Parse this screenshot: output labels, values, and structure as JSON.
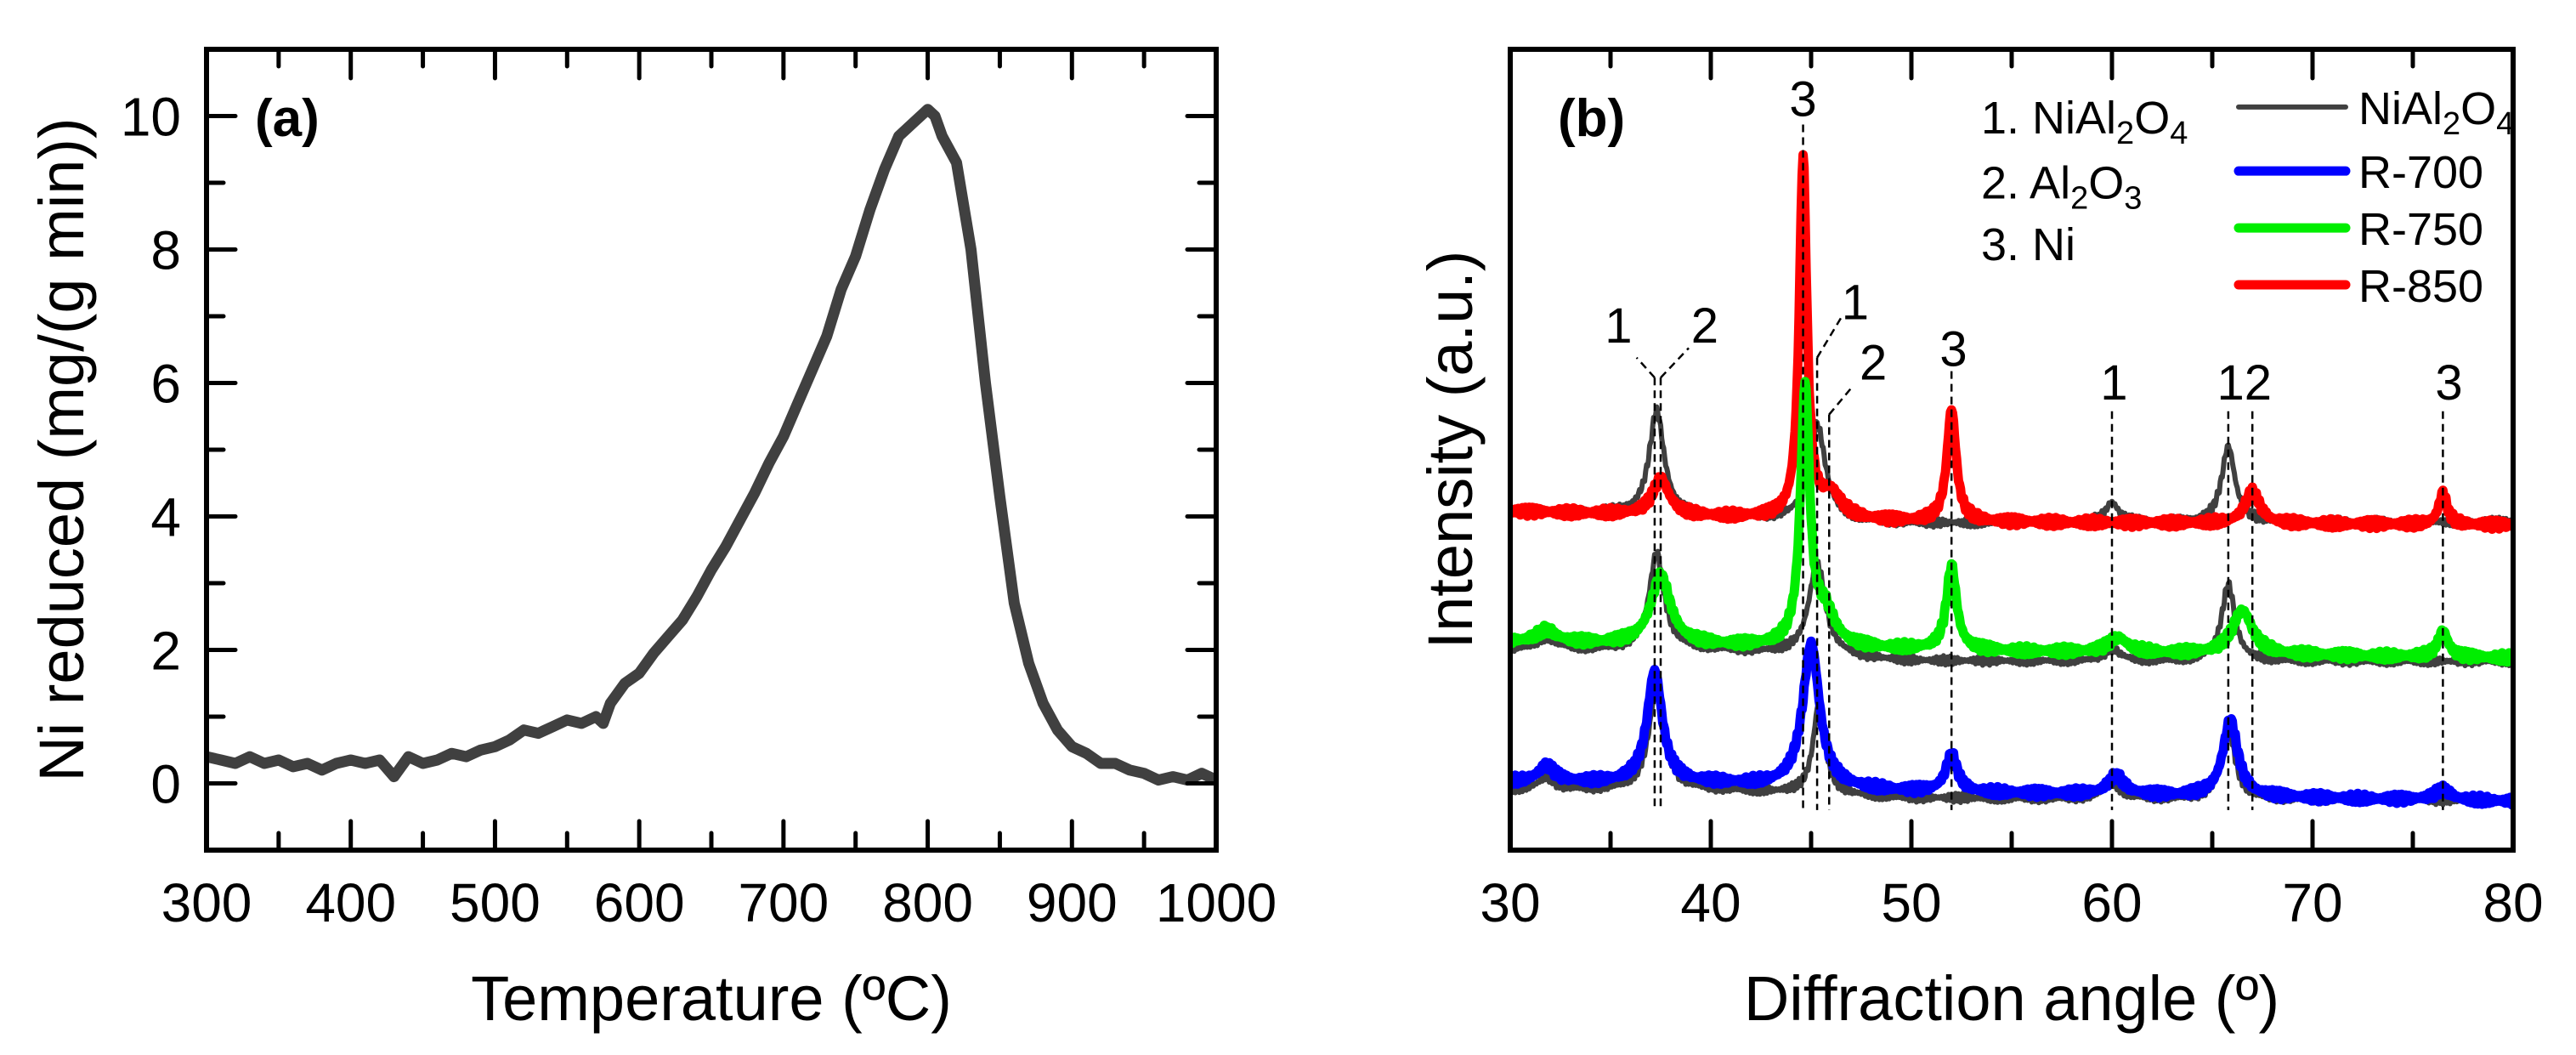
{
  "chart_data": [
    {
      "type": "line",
      "panel_label": "(a)",
      "xlabel": "Temperature (ºC)",
      "ylabel": "Ni reduced (mg/(g min))",
      "xlim": [
        300,
        1000
      ],
      "ylim": [
        -1,
        11
      ],
      "xticks": [
        300,
        400,
        500,
        600,
        700,
        800,
        900,
        1000
      ],
      "yticks": [
        0,
        2,
        4,
        6,
        8,
        10
      ],
      "color": "#404040",
      "x": [
        300,
        310,
        320,
        330,
        340,
        350,
        360,
        370,
        380,
        390,
        400,
        410,
        420,
        430,
        440,
        450,
        460,
        470,
        480,
        490,
        500,
        510,
        520,
        530,
        540,
        550,
        560,
        570,
        575,
        580,
        590,
        600,
        610,
        620,
        630,
        640,
        650,
        660,
        670,
        680,
        690,
        700,
        710,
        720,
        730,
        740,
        750,
        760,
        770,
        780,
        790,
        800,
        805,
        810,
        820,
        830,
        840,
        850,
        860,
        870,
        880,
        890,
        900,
        910,
        920,
        930,
        940,
        950,
        960,
        970,
        980,
        990,
        1000
      ],
      "y": [
        0.4,
        0.35,
        0.3,
        0.4,
        0.3,
        0.35,
        0.25,
        0.3,
        0.2,
        0.3,
        0.35,
        0.3,
        0.35,
        0.1,
        0.4,
        0.3,
        0.35,
        0.45,
        0.4,
        0.5,
        0.55,
        0.65,
        0.8,
        0.75,
        0.85,
        0.95,
        0.9,
        1.0,
        0.9,
        1.2,
        1.5,
        1.65,
        1.95,
        2.2,
        2.45,
        2.8,
        3.2,
        3.55,
        3.95,
        4.35,
        4.8,
        5.2,
        5.7,
        6.2,
        6.7,
        7.4,
        7.9,
        8.6,
        9.2,
        9.7,
        9.9,
        10.1,
        10.0,
        9.7,
        9.3,
        8.0,
        6.0,
        4.3,
        2.7,
        1.8,
        1.2,
        0.8,
        0.55,
        0.45,
        0.3,
        0.3,
        0.2,
        0.15,
        0.05,
        0.1,
        0.05,
        0.15,
        0.05
      ]
    },
    {
      "type": "line",
      "panel_label": "(b)",
      "xlabel": "Diffraction angle (º)",
      "ylabel": "Intensity (a.u.)",
      "xlim": [
        30,
        80
      ],
      "ylim": [
        0,
        100
      ],
      "xticks": [
        30,
        40,
        50,
        60,
        70,
        80
      ],
      "y_tick_labels_shown": false,
      "series_model": "baseline points [x, intensity] plus Lorentzian peaks [position, height, FWHM], intensity in a.u.",
      "series": [
        {
          "name": "NiAl2O4 (vs R-850)",
          "color": "#404040",
          "role": "reference",
          "baseline": [
            [
              30,
              42.5
            ],
            [
              40,
              41.5
            ],
            [
              50,
              40.8
            ],
            [
              80,
              41
            ]
          ],
          "peaks": [
            [
              37.3,
              13,
              0.9
            ],
            [
              45.3,
              12,
              1.0
            ],
            [
              60,
              2.5,
              0.8
            ],
            [
              65.8,
              9.5,
              0.8
            ]
          ]
        },
        {
          "name": "NiAl2O4 (vs R-750)",
          "color": "#404040",
          "role": "reference",
          "baseline": [
            [
              30,
              25
            ],
            [
              40,
              25
            ],
            [
              50,
              23.6
            ],
            [
              80,
              23.6
            ]
          ],
          "peaks": [
            [
              31.8,
              1.5,
              1.2
            ],
            [
              37.3,
              12,
              0.9
            ],
            [
              45.3,
              11.5,
              1.0
            ],
            [
              60,
              1.5,
              1
            ],
            [
              65.8,
              9.5,
              0.8
            ]
          ]
        },
        {
          "name": "NiAl2O4 (vs R-700)",
          "color": "#404040",
          "role": "reference",
          "baseline": [
            [
              30,
              7.5
            ],
            [
              40,
              7.5
            ],
            [
              50,
              6.5
            ],
            [
              80,
              6.2
            ]
          ],
          "peaks": [
            [
              31.8,
              1.5,
              1
            ],
            [
              37.3,
              13,
              0.9
            ],
            [
              45.4,
              11.5,
              0.7
            ],
            [
              60,
              2,
              1
            ],
            [
              65.8,
              9,
              0.8
            ]
          ]
        },
        {
          "name": "R-850",
          "color": "#ff0000",
          "role": "sample",
          "baseline": [
            [
              30,
              42.3
            ],
            [
              42,
              41.5
            ],
            [
              50,
              41
            ],
            [
              80,
              40.6
            ]
          ],
          "peaks": [
            [
              37.5,
              4.5,
              1.0
            ],
            [
              44.6,
              45,
              0.45
            ],
            [
              46,
              3,
              1.2
            ],
            [
              52.0,
              14,
              0.55
            ],
            [
              67.0,
              4,
              0.9
            ],
            [
              76.5,
              4,
              0.5
            ]
          ]
        },
        {
          "name": "R-750",
          "color": "#00ee00",
          "role": "sample",
          "baseline": [
            [
              30,
              26
            ],
            [
              40,
              25.5
            ],
            [
              55,
              24.8
            ],
            [
              80,
              24
            ]
          ],
          "peaks": [
            [
              31.8,
              1.5,
              1.2
            ],
            [
              37.5,
              8.5,
              1.2
            ],
            [
              44.7,
              32,
              0.55
            ],
            [
              45.7,
              4,
              1.2
            ],
            [
              52,
              10.5,
              0.6
            ],
            [
              60.3,
              1.8,
              1.2
            ],
            [
              66.5,
              5.5,
              1.2
            ],
            [
              76.5,
              3.3,
              0.6
            ]
          ]
        },
        {
          "name": "R-700",
          "color": "#0000ff",
          "role": "sample",
          "baseline": [
            [
              30,
              8.5
            ],
            [
              40,
              8.3
            ],
            [
              50,
              7.3
            ],
            [
              70,
              6.5
            ],
            [
              80,
              6.1
            ]
          ],
          "peaks": [
            [
              31.8,
              2,
              1
            ],
            [
              37.2,
              14,
              0.9
            ],
            [
              45.0,
              18,
              1.0
            ],
            [
              52,
              4.6,
              0.7
            ],
            [
              60.2,
              2.3,
              1
            ],
            [
              65.9,
              9.5,
              0.9
            ],
            [
              76.5,
              1.3,
              1
            ]
          ]
        }
      ],
      "legend": [
        {
          "color": "#404040",
          "parts": [
            {
              "t": "NiAl"
            },
            {
              "t": "2",
              "sub": true
            },
            {
              "t": "O"
            },
            {
              "t": "4",
              "sub": true
            }
          ]
        },
        {
          "color": "#0000ff",
          "parts": [
            {
              "t": "R-700"
            }
          ]
        },
        {
          "color": "#00ee00",
          "parts": [
            {
              "t": "R-750"
            }
          ]
        },
        {
          "color": "#ff0000",
          "parts": [
            {
              "t": "R-850"
            }
          ]
        }
      ],
      "legend_placement": "top-right",
      "phase_key": [
        {
          "parts": [
            {
              "t": "1. NiAl"
            },
            {
              "t": "2",
              "sub": true
            },
            {
              "t": "O"
            },
            {
              "t": "4",
              "sub": true
            }
          ]
        },
        {
          "parts": [
            {
              "t": "2. Al"
            },
            {
              "t": "2",
              "sub": true
            },
            {
              "t": "O"
            },
            {
              "t": "3",
              "sub": true
            }
          ]
        },
        {
          "parts": [
            {
              "t": "3. Ni"
            }
          ]
        }
      ],
      "reference_lines": [
        {
          "x": 37.2,
          "top": 59
        },
        {
          "x": 37.5,
          "top": 59
        },
        {
          "x": 44.6,
          "top": 90.6
        },
        {
          "x": 45.3,
          "top": 61.5
        },
        {
          "x": 45.9,
          "top": 54.4
        },
        {
          "x": 52.0,
          "top": 59.8
        },
        {
          "x": 60.0,
          "top": 54.8
        },
        {
          "x": 65.8,
          "top": 54.8
        },
        {
          "x": 67.0,
          "top": 54.8
        },
        {
          "x": 76.5,
          "top": 54.8
        }
      ],
      "reference_line_bottom": 5,
      "leader_lines": [
        {
          "from": [
            37.2,
            59
          ],
          "to": [
            36.3,
            61.5
          ]
        },
        {
          "from": [
            37.5,
            59
          ],
          "to": [
            38.9,
            62.7
          ]
        },
        {
          "from": [
            45.3,
            61.5
          ],
          "to": [
            46.5,
            66.5
          ]
        },
        {
          "from": [
            45.9,
            54.4
          ],
          "to": [
            47.1,
            58
          ]
        }
      ],
      "annotations": [
        {
          "text": "1",
          "x": 35.4,
          "y": 65.6
        },
        {
          "text": "2",
          "x": 39.7,
          "y": 65.6
        },
        {
          "text": "3",
          "x": 44.6,
          "y": 93.9
        },
        {
          "text": "1",
          "x": 47.2,
          "y": 68.5
        },
        {
          "text": "2",
          "x": 48.1,
          "y": 61
        },
        {
          "text": "3",
          "x": 52.1,
          "y": 62.7
        },
        {
          "text": "1",
          "x": 60.1,
          "y": 58.5
        },
        {
          "text": "12",
          "x": 66.6,
          "y": 58.5
        },
        {
          "text": "3",
          "x": 76.8,
          "y": 58.5
        }
      ]
    }
  ]
}
